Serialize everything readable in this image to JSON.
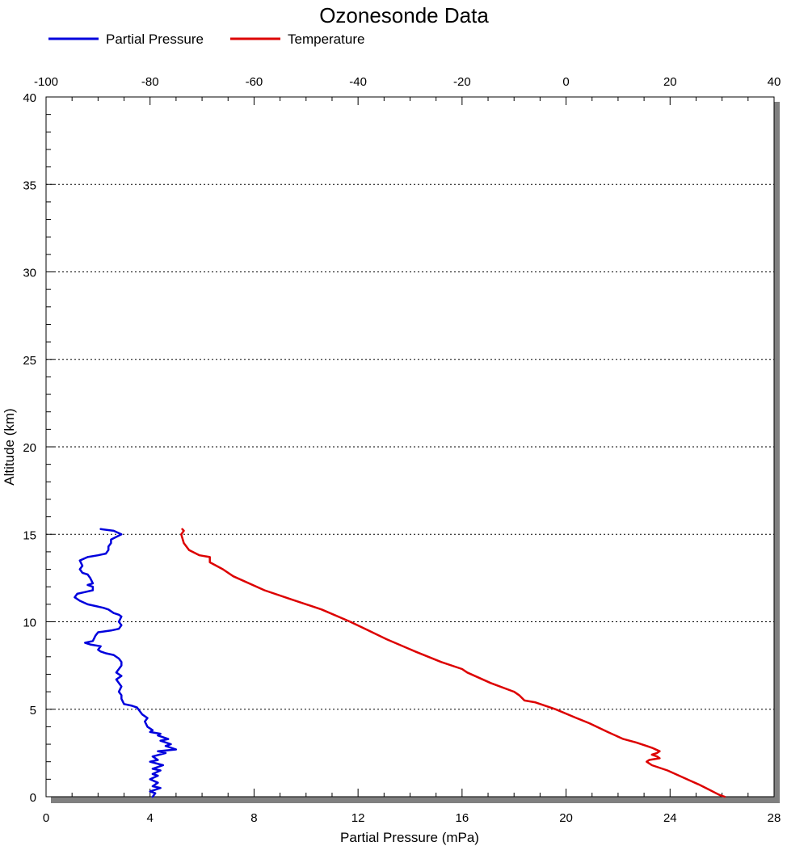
{
  "chart_data": {
    "type": "line",
    "title": "Ozonesonde Data",
    "legend": {
      "placement": "top-left",
      "entries": [
        {
          "name": "Partial Pressure",
          "color": "#0000dd"
        },
        {
          "name": "Temperature",
          "color": "#dd0000"
        }
      ]
    },
    "grid": {
      "horizontal": true,
      "vertical": false,
      "style": "dotted"
    },
    "y_axis": {
      "label": "Altitude (km)",
      "range": [
        0,
        40
      ],
      "major_ticks": [
        0,
        5,
        10,
        15,
        20,
        25,
        30,
        35,
        40
      ],
      "major_tick_labels": [
        "0",
        "5",
        "10",
        "15",
        "20",
        "25",
        "30",
        "35",
        "40"
      ],
      "minor_step": 1
    },
    "x_axis_bottom": {
      "label": "Partial Pressure (mPa)",
      "range": [
        0,
        28
      ],
      "major_ticks": [
        0,
        4,
        8,
        12,
        16,
        20,
        24,
        28
      ],
      "major_tick_labels": [
        "0",
        "4",
        "8",
        "12",
        "16",
        "20",
        "24",
        "28"
      ],
      "minor_step": 1
    },
    "x_axis_top": {
      "label": "",
      "range": [
        -100,
        40
      ],
      "major_ticks": [
        -100,
        -80,
        -60,
        -40,
        -20,
        0,
        20,
        40
      ],
      "major_tick_labels": [
        "-100",
        "-80",
        "-60",
        "-40",
        "-20",
        "0",
        "20",
        "40"
      ],
      "minor_step": 5
    },
    "series": [
      {
        "name": "Partial Pressure",
        "axis": "bottom",
        "color": "#0000dd",
        "points": [
          [
            4.1,
            0.0
          ],
          [
            4.2,
            0.2
          ],
          [
            4.0,
            0.3
          ],
          [
            4.4,
            0.5
          ],
          [
            4.1,
            0.6
          ],
          [
            4.3,
            0.8
          ],
          [
            4.0,
            1.0
          ],
          [
            4.3,
            1.2
          ],
          [
            4.1,
            1.3
          ],
          [
            4.4,
            1.5
          ],
          [
            4.1,
            1.6
          ],
          [
            4.5,
            1.8
          ],
          [
            4.0,
            2.0
          ],
          [
            4.3,
            2.1
          ],
          [
            4.1,
            2.3
          ],
          [
            4.6,
            2.5
          ],
          [
            4.3,
            2.6
          ],
          [
            5.0,
            2.7
          ],
          [
            4.6,
            2.9
          ],
          [
            4.8,
            3.0
          ],
          [
            4.4,
            3.2
          ],
          [
            4.7,
            3.3
          ],
          [
            4.3,
            3.5
          ],
          [
            4.4,
            3.6
          ],
          [
            4.0,
            3.7
          ],
          [
            4.1,
            3.8
          ],
          [
            3.9,
            4.0
          ],
          [
            3.8,
            4.3
          ],
          [
            3.9,
            4.5
          ],
          [
            3.7,
            4.7
          ],
          [
            3.6,
            4.9
          ],
          [
            3.5,
            5.1
          ],
          [
            3.3,
            5.2
          ],
          [
            3.0,
            5.3
          ],
          [
            2.9,
            5.6
          ],
          [
            2.9,
            5.8
          ],
          [
            2.8,
            6.0
          ],
          [
            2.9,
            6.3
          ],
          [
            2.8,
            6.5
          ],
          [
            2.7,
            6.7
          ],
          [
            2.9,
            6.9
          ],
          [
            2.7,
            7.1
          ],
          [
            2.8,
            7.3
          ],
          [
            2.9,
            7.5
          ],
          [
            2.9,
            7.7
          ],
          [
            2.8,
            7.9
          ],
          [
            2.6,
            8.1
          ],
          [
            2.3,
            8.2
          ],
          [
            2.1,
            8.3
          ],
          [
            2.0,
            8.4
          ],
          [
            2.1,
            8.6
          ],
          [
            1.7,
            8.7
          ],
          [
            1.5,
            8.8
          ],
          [
            1.8,
            8.9
          ],
          [
            1.9,
            9.2
          ],
          [
            2.0,
            9.4
          ],
          [
            2.5,
            9.5
          ],
          [
            2.8,
            9.6
          ],
          [
            2.9,
            9.8
          ],
          [
            2.8,
            10.0
          ],
          [
            2.9,
            10.3
          ],
          [
            2.8,
            10.4
          ],
          [
            2.6,
            10.5
          ],
          [
            2.4,
            10.7
          ],
          [
            2.2,
            10.8
          ],
          [
            1.9,
            10.9
          ],
          [
            1.6,
            11.0
          ],
          [
            1.3,
            11.2
          ],
          [
            1.1,
            11.4
          ],
          [
            1.2,
            11.6
          ],
          [
            1.5,
            11.7
          ],
          [
            1.8,
            11.8
          ],
          [
            1.8,
            12.0
          ],
          [
            1.6,
            12.1
          ],
          [
            1.8,
            12.2
          ],
          [
            1.7,
            12.5
          ],
          [
            1.6,
            12.7
          ],
          [
            1.4,
            12.8
          ],
          [
            1.3,
            13.0
          ],
          [
            1.4,
            13.2
          ],
          [
            1.3,
            13.5
          ],
          [
            1.6,
            13.7
          ],
          [
            2.0,
            13.8
          ],
          [
            2.3,
            13.9
          ],
          [
            2.4,
            14.1
          ],
          [
            2.4,
            14.3
          ],
          [
            2.5,
            14.5
          ],
          [
            2.5,
            14.7
          ],
          [
            2.9,
            15.0
          ],
          [
            2.6,
            15.2
          ],
          [
            2.1,
            15.3
          ]
        ]
      },
      {
        "name": "Temperature",
        "axis": "top",
        "color": "#dd0000",
        "points": [
          [
            30.5,
            0.0
          ],
          [
            29.5,
            0.1
          ],
          [
            27.5,
            0.4
          ],
          [
            25.5,
            0.7
          ],
          [
            24.0,
            0.9
          ],
          [
            19.5,
            1.5
          ],
          [
            16.5,
            1.8
          ],
          [
            15.5,
            2.0
          ],
          [
            16.0,
            2.1
          ],
          [
            18.0,
            2.2
          ],
          [
            17.5,
            2.3
          ],
          [
            16.5,
            2.4
          ],
          [
            17.5,
            2.5
          ],
          [
            18.0,
            2.6
          ],
          [
            16.5,
            2.8
          ],
          [
            15.5,
            2.9
          ],
          [
            13.5,
            3.1
          ],
          [
            11.0,
            3.3
          ],
          [
            8.0,
            3.7
          ],
          [
            4.5,
            4.2
          ],
          [
            2.0,
            4.5
          ],
          [
            -2.0,
            5.0
          ],
          [
            -6.0,
            5.4
          ],
          [
            -8.0,
            5.5
          ],
          [
            -9.0,
            5.8
          ],
          [
            -10.0,
            6.0
          ],
          [
            -14.5,
            6.5
          ],
          [
            -19.0,
            7.1
          ],
          [
            -20.0,
            7.3
          ],
          [
            -24.0,
            7.7
          ],
          [
            -29.0,
            8.3
          ],
          [
            -34.5,
            9.0
          ],
          [
            -38.0,
            9.5
          ],
          [
            -41.5,
            10.0
          ],
          [
            -47.0,
            10.7
          ],
          [
            -53.0,
            11.3
          ],
          [
            -58.0,
            11.8
          ],
          [
            -64.0,
            12.6
          ],
          [
            -66.0,
            13.0
          ],
          [
            -68.5,
            13.4
          ],
          [
            -68.5,
            13.7
          ],
          [
            -70.5,
            13.8
          ],
          [
            -72.5,
            14.1
          ],
          [
            -73.5,
            14.5
          ],
          [
            -74.0,
            15.0
          ],
          [
            -73.5,
            15.2
          ],
          [
            -73.8,
            15.3
          ]
        ]
      }
    ]
  }
}
